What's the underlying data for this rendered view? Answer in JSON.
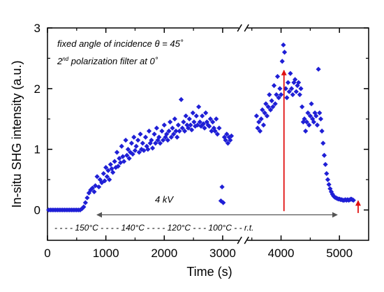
{
  "chart_data": {
    "type": "scatter",
    "title": "",
    "xlabel": "Time (s)",
    "ylabel": "In-situ SHG intensity (a.u.)",
    "xlim": [
      0,
      5500
    ],
    "ylim": [
      -0.5,
      3
    ],
    "x_ticks": [
      0,
      1000,
      2000,
      3000,
      4000,
      5000
    ],
    "y_ticks": [
      0,
      1,
      2,
      3
    ],
    "axis_break_x": 3350,
    "marker_color": "#1f1fd6",
    "arrow_color": "#e01010",
    "annotations": {
      "line1_prefix": "fixed angle of incidence ",
      "theta": "θ",
      "line1_suffix": " = 45˚",
      "line2_a": "2",
      "line2_sup": "nd",
      "line2_b": " polarization filter at 0˚",
      "voltage": "4 kV",
      "temperature_row": "- - - - 150°C - - - - 140°C - - - - 120°C - - - 100°C - - r.t."
    },
    "voltage_arrow": {
      "x_start": 850,
      "x_end": 4960,
      "y": -0.08
    },
    "red_arrows": [
      {
        "x": 4050,
        "y_from": -0.02,
        "y_to": 2.3
      },
      {
        "x": 5320,
        "y_from": -0.05,
        "y_to": 0.15
      }
    ],
    "series": [
      {
        "values": [
          [
            20,
            0
          ],
          [
            50,
            0
          ],
          [
            80,
            0
          ],
          [
            110,
            0
          ],
          [
            140,
            0
          ],
          [
            170,
            0
          ],
          [
            200,
            0
          ],
          [
            230,
            0
          ],
          [
            260,
            0
          ],
          [
            290,
            0
          ],
          [
            320,
            0
          ],
          [
            350,
            0
          ],
          [
            380,
            0
          ],
          [
            410,
            0
          ],
          [
            440,
            0
          ],
          [
            470,
            0
          ],
          [
            500,
            0
          ],
          [
            530,
            0
          ],
          [
            560,
            0
          ],
          [
            590,
            0.02
          ],
          [
            620,
            0.05
          ],
          [
            650,
            0.12
          ],
          [
            680,
            0.2
          ],
          [
            710,
            0.28
          ],
          [
            740,
            0.33
          ],
          [
            770,
            0.36
          ],
          [
            800,
            0.3
          ],
          [
            820,
            0.4
          ],
          [
            850,
            0.55
          ],
          [
            880,
            0.38
          ],
          [
            900,
            0.5
          ],
          [
            930,
            0.45
          ],
          [
            960,
            0.6
          ],
          [
            980,
            0.48
          ],
          [
            1000,
            0.7
          ],
          [
            1020,
            0.55
          ],
          [
            1040,
            0.65
          ],
          [
            1060,
            0.5
          ],
          [
            1080,
            0.75
          ],
          [
            1100,
            0.68
          ],
          [
            1120,
            0.62
          ],
          [
            1150,
            0.8
          ],
          [
            1170,
            0.7
          ],
          [
            1190,
            0.95
          ],
          [
            1210,
            0.72
          ],
          [
            1230,
            0.85
          ],
          [
            1250,
            0.78
          ],
          [
            1270,
            1.05
          ],
          [
            1290,
            0.88
          ],
          [
            1310,
            0.8
          ],
          [
            1340,
            1.15
          ],
          [
            1360,
            0.9
          ],
          [
            1380,
            1.0
          ],
          [
            1400,
            0.85
          ],
          [
            1420,
            0.95
          ],
          [
            1440,
            1.1
          ],
          [
            1460,
            0.92
          ],
          [
            1480,
            1.2
          ],
          [
            1500,
            0.98
          ],
          [
            1520,
            1.05
          ],
          [
            1550,
            1.15
          ],
          [
            1570,
            0.95
          ],
          [
            1590,
            1.25
          ],
          [
            1610,
            1.0
          ],
          [
            1630,
            1.1
          ],
          [
            1650,
            0.98
          ],
          [
            1680,
            1.2
          ],
          [
            1700,
            1.05
          ],
          [
            1720,
            1.0
          ],
          [
            1740,
            1.3
          ],
          [
            1760,
            1.1
          ],
          [
            1780,
            1.15
          ],
          [
            1800,
            1.02
          ],
          [
            1830,
            1.25
          ],
          [
            1850,
            1.1
          ],
          [
            1870,
            1.35
          ],
          [
            1890,
            1.15
          ],
          [
            1910,
            1.2
          ],
          [
            1930,
            1.1
          ],
          [
            1960,
            1.3
          ],
          [
            1980,
            1.15
          ],
          [
            2000,
            1.4
          ],
          [
            2020,
            1.2
          ],
          [
            2040,
            1.25
          ],
          [
            2060,
            1.15
          ],
          [
            2080,
            1.3
          ],
          [
            2100,
            1.45
          ],
          [
            2120,
            1.2
          ],
          [
            2140,
            1.35
          ],
          [
            2160,
            1.25
          ],
          [
            2180,
            1.5
          ],
          [
            2200,
            1.3
          ],
          [
            2220,
            1.2
          ],
          [
            2240,
            1.4
          ],
          [
            2260,
            1.3
          ],
          [
            2290,
            1.82
          ],
          [
            2310,
            1.35
          ],
          [
            2330,
            1.45
          ],
          [
            2350,
            1.3
          ],
          [
            2370,
            1.55
          ],
          [
            2390,
            1.4
          ],
          [
            2410,
            1.35
          ],
          [
            2430,
            1.5
          ],
          [
            2450,
            1.4
          ],
          [
            2470,
            1.32
          ],
          [
            2490,
            1.6
          ],
          [
            2510,
            1.45
          ],
          [
            2530,
            1.38
          ],
          [
            2550,
            1.55
          ],
          [
            2570,
            1.4
          ],
          [
            2590,
            1.7
          ],
          [
            2610,
            1.45
          ],
          [
            2630,
            1.38
          ],
          [
            2650,
            1.55
          ],
          [
            2670,
            1.42
          ],
          [
            2690,
            1.35
          ],
          [
            2710,
            1.6
          ],
          [
            2730,
            1.45
          ],
          [
            2750,
            1.4
          ],
          [
            2770,
            1.38
          ],
          [
            2790,
            1.5
          ],
          [
            2810,
            1.3
          ],
          [
            2830,
            1.45
          ],
          [
            2850,
            1.35
          ],
          [
            2870,
            1.3
          ],
          [
            2890,
            1.5
          ],
          [
            2910,
            1.25
          ],
          [
            2940,
            1.35
          ],
          [
            2970,
            0.15
          ],
          [
            2990,
            0.38
          ],
          [
            3010,
            0.12
          ],
          [
            3030,
            1.2
          ],
          [
            3050,
            1.15
          ],
          [
            3070,
            1.25
          ],
          [
            3090,
            1.1
          ],
          [
            3110,
            1.2
          ],
          [
            3130,
            1.15
          ],
          [
            3150,
            1.22
          ],
          [
            3580,
            1.55
          ],
          [
            3600,
            1.35
          ],
          [
            3620,
            1.45
          ],
          [
            3640,
            1.3
          ],
          [
            3660,
            1.5
          ],
          [
            3680,
            1.65
          ],
          [
            3700,
            1.4
          ],
          [
            3720,
            1.6
          ],
          [
            3740,
            1.75
          ],
          [
            3760,
            1.55
          ],
          [
            3780,
            1.7
          ],
          [
            3800,
            1.9
          ],
          [
            3820,
            1.65
          ],
          [
            3840,
            1.8
          ],
          [
            3860,
            1.7
          ],
          [
            3880,
            2.05
          ],
          [
            3900,
            1.75
          ],
          [
            3920,
            1.9
          ],
          [
            3940,
            2.2
          ],
          [
            3960,
            1.85
          ],
          [
            3980,
            2.0
          ],
          [
            4000,
            1.9
          ],
          [
            4020,
            2.45
          ],
          [
            4040,
            2.72
          ],
          [
            4060,
            2.6
          ],
          [
            4080,
            2.0
          ],
          [
            4100,
            1.85
          ],
          [
            4120,
            2.1
          ],
          [
            4140,
            1.95
          ],
          [
            4160,
            2.25
          ],
          [
            4180,
            2.0
          ],
          [
            4200,
            1.9
          ],
          [
            4220,
            2.1
          ],
          [
            4240,
            2.15
          ],
          [
            4260,
            1.95
          ],
          [
            4280,
            2.05
          ],
          [
            4300,
            2.1
          ],
          [
            4320,
            1.9
          ],
          [
            4340,
            2.0
          ],
          [
            4360,
            1.7
          ],
          [
            4380,
            1.45
          ],
          [
            4400,
            1.5
          ],
          [
            4420,
            1.3
          ],
          [
            4440,
            1.45
          ],
          [
            4460,
            1.6
          ],
          [
            4480,
            1.4
          ],
          [
            4500,
            1.55
          ],
          [
            4520,
            1.75
          ],
          [
            4540,
            1.5
          ],
          [
            4560,
            1.45
          ],
          [
            4580,
            1.6
          ],
          [
            4600,
            1.55
          ],
          [
            4620,
            1.4
          ],
          [
            4640,
            2.32
          ],
          [
            4660,
            1.6
          ],
          [
            4680,
            1.5
          ],
          [
            4700,
            1.3
          ],
          [
            4720,
            1.1
          ],
          [
            4740,
            0.9
          ],
          [
            4760,
            0.75
          ],
          [
            4780,
            0.6
          ],
          [
            4800,
            0.5
          ],
          [
            4820,
            0.42
          ],
          [
            4840,
            0.35
          ],
          [
            4860,
            0.3
          ],
          [
            4880,
            0.26
          ],
          [
            4900,
            0.23
          ],
          [
            4920,
            0.21
          ],
          [
            4940,
            0.2
          ],
          [
            4960,
            0.19
          ],
          [
            4980,
            0.18
          ],
          [
            5000,
            0.18
          ],
          [
            5020,
            0.17
          ],
          [
            5040,
            0.17
          ],
          [
            5060,
            0.16
          ],
          [
            5080,
            0.16
          ],
          [
            5100,
            0.17
          ],
          [
            5120,
            0.16
          ],
          [
            5140,
            0.17
          ],
          [
            5160,
            0.16
          ],
          [
            5180,
            0.17
          ],
          [
            5200,
            0.18
          ],
          [
            5220,
            0.17
          ],
          [
            5240,
            0.16
          ]
        ]
      }
    ]
  }
}
